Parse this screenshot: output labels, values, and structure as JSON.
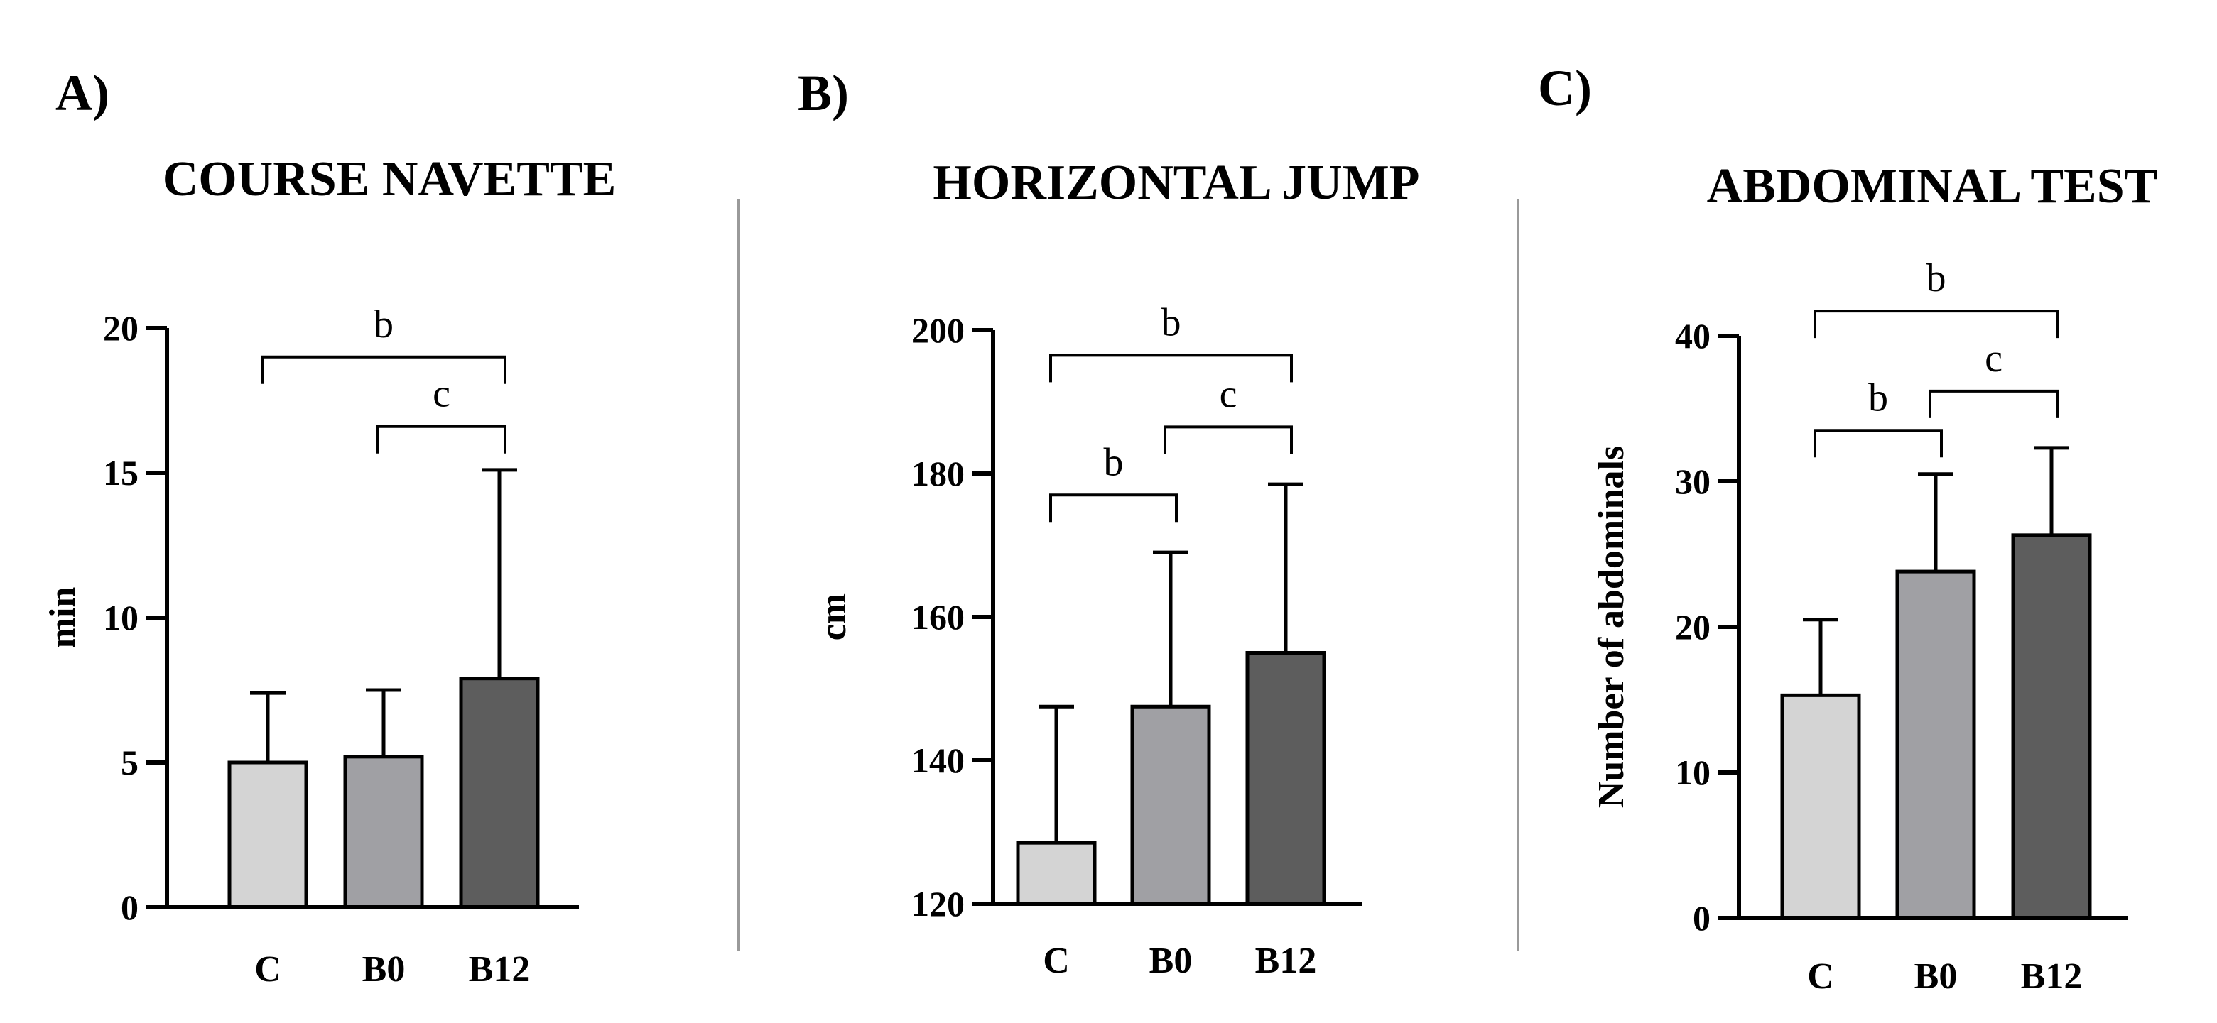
{
  "chart_data": [
    {
      "type": "bar",
      "panel_label": "A)",
      "title": "COURSE NAVETTE",
      "ylabel": "min",
      "ylim": [
        0,
        20
      ],
      "yticks": [
        0,
        5,
        10,
        15,
        20
      ],
      "categories": [
        "C",
        "B0",
        "B12"
      ],
      "values": [
        5.0,
        5.2,
        7.9
      ],
      "errors": [
        2.4,
        2.3,
        7.2
      ],
      "bar_colors": [
        "#d4d4d4",
        "#a0a0a4",
        "#5d5d5d"
      ],
      "significance": [
        {
          "from": 0,
          "to": 2,
          "label": "b",
          "level": 19
        },
        {
          "from": 1,
          "to": 2,
          "label": "c",
          "level": 16.6
        }
      ]
    },
    {
      "type": "bar",
      "panel_label": "B)",
      "title": "HORIZONTAL JUMP",
      "ylabel": "cm",
      "ylim": [
        120,
        200
      ],
      "yticks": [
        120,
        140,
        160,
        180,
        200
      ],
      "categories": [
        "C",
        "B0",
        "B12"
      ],
      "values": [
        128.5,
        147.5,
        155.0
      ],
      "errors": [
        19.0,
        21.5,
        23.5
      ],
      "bar_colors": [
        "#d4d4d4",
        "#a0a0a4",
        "#5d5d5d"
      ],
      "significance": [
        {
          "from": 0,
          "to": 2,
          "label": "b",
          "level": 196.5
        },
        {
          "from": 0,
          "to": 1,
          "label": "b",
          "level": 177
        },
        {
          "from": 1,
          "to": 2,
          "label": "c",
          "level": 186.5
        }
      ]
    },
    {
      "type": "bar",
      "panel_label": "C)",
      "title": "ABDOMINAL TEST",
      "ylabel": "Number of abdominals",
      "ylim": [
        0,
        40
      ],
      "yticks": [
        0,
        10,
        20,
        30,
        40
      ],
      "categories": [
        "C",
        "B0",
        "B12"
      ],
      "values": [
        15.3,
        23.8,
        26.3
      ],
      "errors": [
        5.2,
        6.7,
        6.0
      ],
      "bar_colors": [
        "#d4d4d4",
        "#a0a0a4",
        "#5d5d5d"
      ],
      "significance": [
        {
          "from": 0,
          "to": 2,
          "label": "b",
          "level": 41.7
        },
        {
          "from": 0,
          "to": 1,
          "label": "b",
          "level": 33.5
        },
        {
          "from": 1,
          "to": 2,
          "label": "c",
          "level": 36.2
        }
      ]
    }
  ]
}
